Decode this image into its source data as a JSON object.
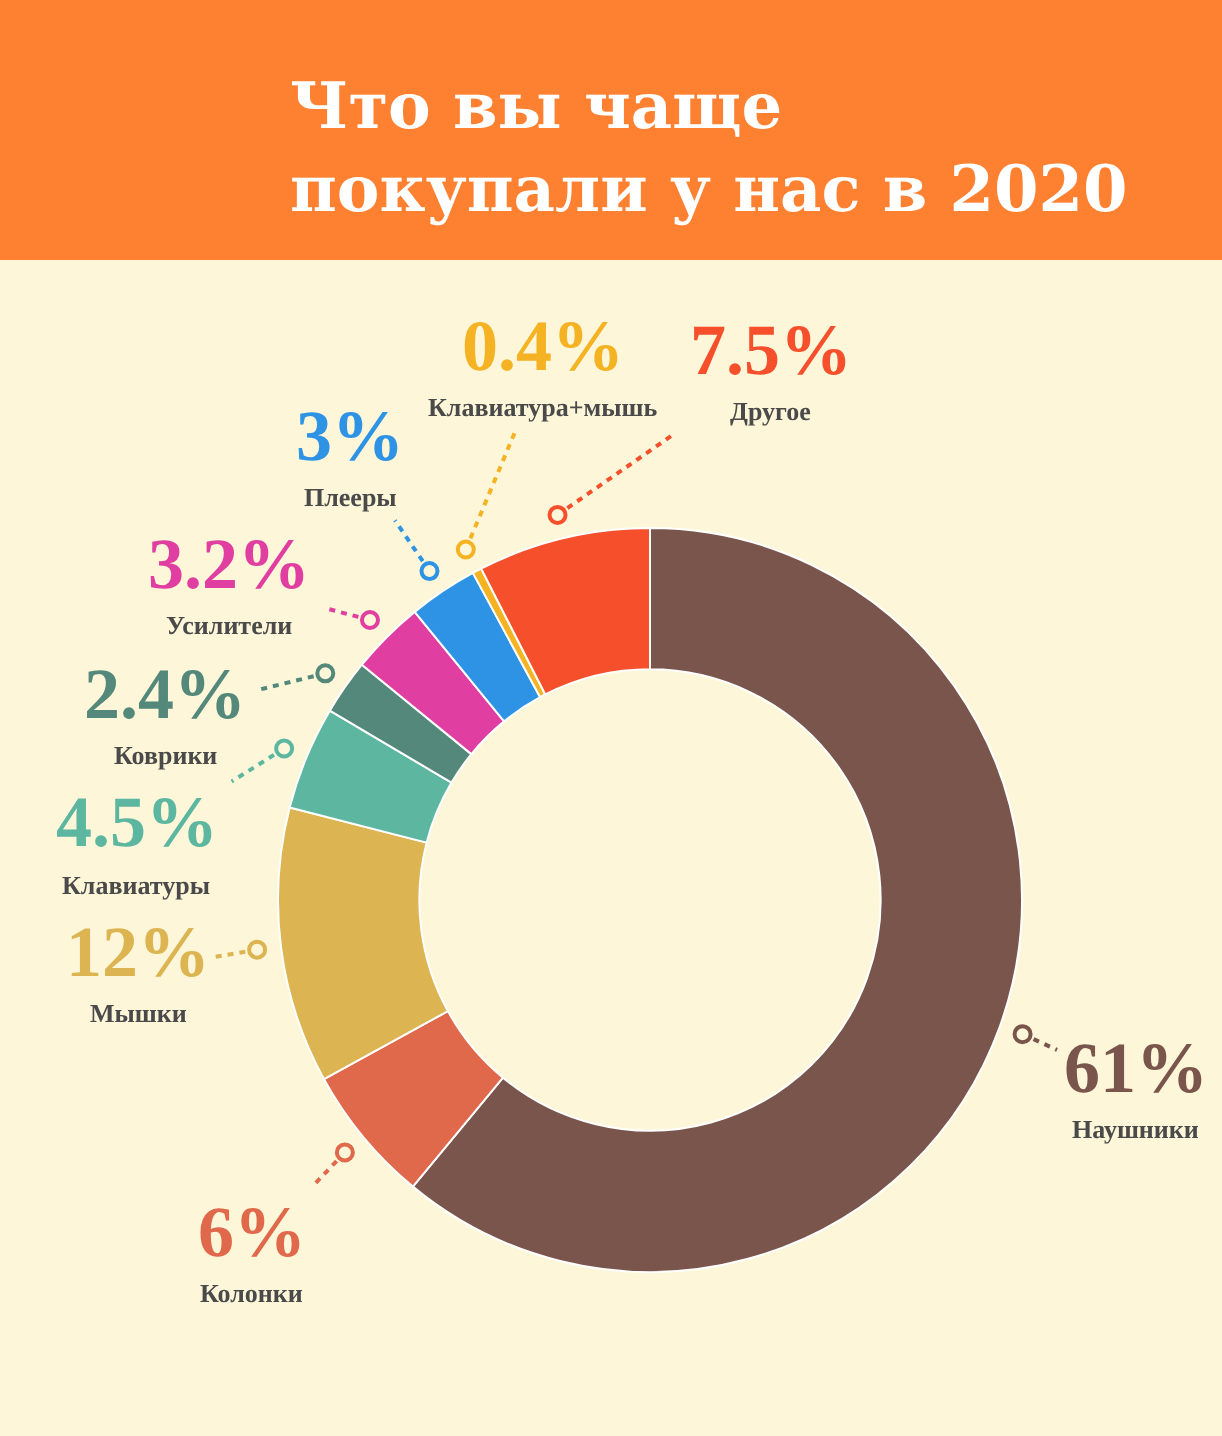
{
  "chart_data": {
    "type": "donut",
    "title": "Что вы чаще\nпокупали у нас в 2020",
    "categories": [
      "Наушники",
      "Колонки",
      "Мышки",
      "Клавиатуры",
      "Коврики",
      "Усилители",
      "Плееры",
      "Клавиатура+мышь",
      "Другое"
    ],
    "values": [
      61,
      6,
      12,
      4.5,
      2.4,
      3.2,
      3,
      0.4,
      7.5
    ],
    "colors": [
      "#7a554c",
      "#e0684b",
      "#dcb552",
      "#5db7a0",
      "#53887a",
      "#e03ea0",
      "#2e93e4",
      "#f5b324",
      "#f54f2b"
    ],
    "value_labels": [
      "61%",
      "6%",
      "12%",
      "4.5%",
      "2.4%",
      "3.2%",
      "3%",
      "0.4%",
      "7.5%"
    ]
  }
}
